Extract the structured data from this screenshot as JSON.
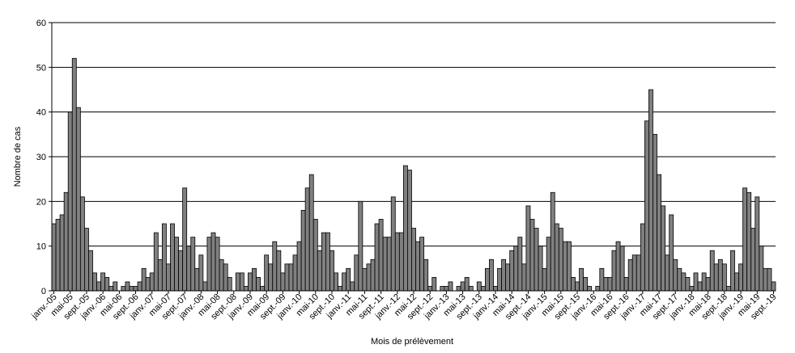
{
  "chart_data": {
    "type": "bar",
    "xlabel": "Mois de prélèvement",
    "ylabel": "Nombre de cas",
    "ylim": [
      0,
      60
    ],
    "yticks": [
      0,
      10,
      20,
      30,
      40,
      50,
      60
    ],
    "grid": "horizontal",
    "legend": "none",
    "bar_color": "#808080",
    "start_month": "janv.-05",
    "x_tick_labels": [
      "janv.-05",
      "mai-05",
      "sept.-05",
      "janv.-06",
      "mai-06",
      "sept.-06",
      "janv.-07",
      "mai-07",
      "sept.-07",
      "janv.-08",
      "mai-08",
      "sept.-08",
      "janv.-09",
      "mai-09",
      "sept.-09",
      "janv.-10",
      "mai-10",
      "sept.-10",
      "janv.-11",
      "mai-11",
      "sept.-11",
      "janv.-12",
      "mai-12",
      "sept.-12",
      "janv.-13",
      "mai-13",
      "sept.-13",
      "janv.-14",
      "mai-14",
      "sept.-14",
      "janv.-15",
      "mai-15",
      "sept.-15",
      "janv.-16",
      "mai-16",
      "sept.-16",
      "janv.-17",
      "mai-17",
      "sept.-17",
      "janv.-18",
      "mai-18",
      "sept.-18",
      "janv.-19",
      "mai-19",
      "sept.-19"
    ],
    "values": [
      15,
      16,
      17,
      22,
      40,
      52,
      41,
      21,
      14,
      9,
      4,
      2,
      4,
      3,
      1,
      2,
      0,
      1,
      2,
      1,
      1,
      2,
      5,
      3,
      4,
      13,
      7,
      15,
      6,
      15,
      12,
      9,
      23,
      10,
      12,
      5,
      8,
      2,
      12,
      13,
      12,
      7,
      6,
      3,
      0,
      4,
      4,
      1,
      4,
      5,
      3,
      1,
      8,
      6,
      11,
      9,
      4,
      6,
      6,
      8,
      11,
      18,
      23,
      26,
      16,
      9,
      13,
      13,
      9,
      4,
      1,
      4,
      5,
      2,
      8,
      20,
      5,
      6,
      7,
      15,
      16,
      12,
      12,
      21,
      13,
      13,
      28,
      27,
      14,
      11,
      12,
      7,
      1,
      3,
      0,
      1,
      1,
      2,
      0,
      1,
      2,
      3,
      1,
      0,
      2,
      1,
      5,
      7,
      1,
      5,
      7,
      6,
      9,
      10,
      12,
      6,
      19,
      16,
      14,
      10,
      5,
      12,
      22,
      15,
      14,
      11,
      11,
      3,
      2,
      5,
      3,
      1,
      0,
      1,
      5,
      3,
      3,
      9,
      11,
      10,
      3,
      7,
      8,
      8,
      15,
      38,
      45,
      35,
      26,
      19,
      8,
      17,
      7,
      5,
      4,
      3,
      1,
      4,
      2,
      4,
      3,
      9,
      6,
      7,
      6,
      1,
      9,
      4,
      6,
      23,
      22,
      14,
      21,
      10,
      5,
      5,
      2
    ]
  }
}
